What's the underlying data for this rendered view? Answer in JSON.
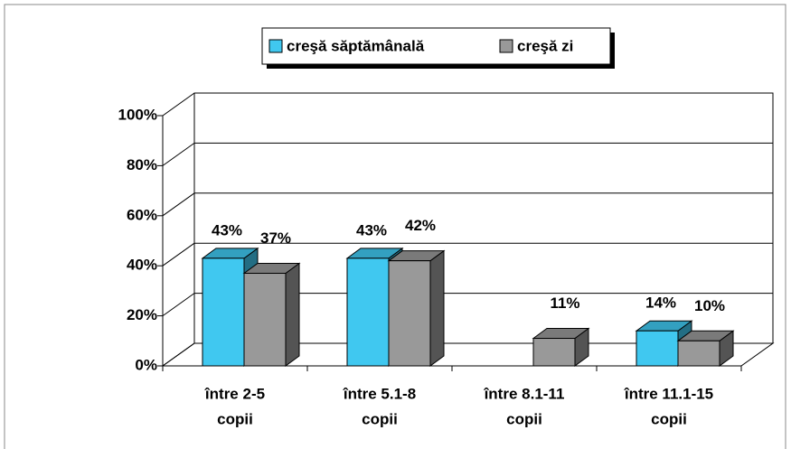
{
  "chart_data": {
    "type": "bar3d",
    "categories": [
      [
        "între 2-5",
        "copii"
      ],
      [
        "între 5.1-8",
        "copii"
      ],
      [
        "între 8.1-11",
        "copii"
      ],
      [
        "între 11.1-15",
        "copii"
      ]
    ],
    "series": [
      {
        "name": "creşă săptămânală",
        "color": "#40c8f0",
        "values": [
          43,
          43,
          null,
          14
        ],
        "value_labels": [
          "43%",
          "43%",
          null,
          "14%"
        ]
      },
      {
        "name": "creşă zi",
        "color": "#999999",
        "values": [
          37,
          42,
          11,
          10
        ],
        "value_labels": [
          "37%",
          "42%",
          "11%",
          "10%"
        ]
      }
    ],
    "ylim": [
      0,
      100
    ],
    "yticks": [
      {
        "value": 0,
        "label": "0%"
      },
      {
        "value": 20,
        "label": "20%"
      },
      {
        "value": 40,
        "label": "40%"
      },
      {
        "value": 60,
        "label": "60%"
      },
      {
        "value": 80,
        "label": "80%"
      },
      {
        "value": 100,
        "label": "100%"
      }
    ],
    "grid": true,
    "legend": "top"
  }
}
